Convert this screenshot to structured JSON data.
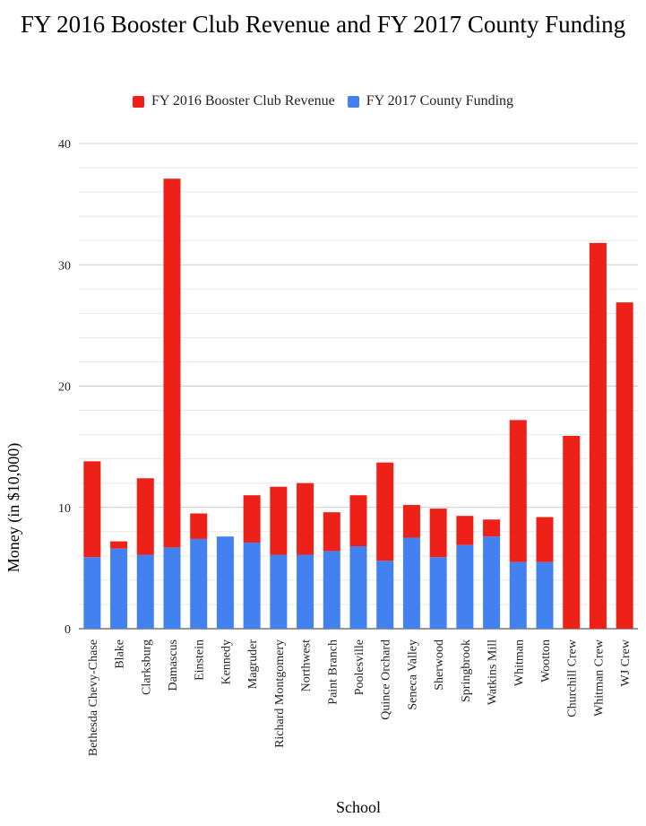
{
  "colors": {
    "booster": "#ee2119",
    "county": "#4380f0",
    "grid_major": "#cccccc",
    "grid_minor": "#e8e8e8",
    "axis": "#333333"
  },
  "chart_data": {
    "type": "bar",
    "stacked": true,
    "title": "FY 2016 Booster Club Revenue and FY 2017 County Funding",
    "xlabel": "School",
    "ylabel": "Money (in $10,000)",
    "ylim": [
      0,
      40
    ],
    "yticks": [
      0,
      10,
      20,
      30,
      40
    ],
    "grid": true,
    "legend_position": "top-center",
    "categories": [
      "Bethesda Chevy-Chase",
      "Blake",
      "Clarksburg",
      "Damascus",
      "Einstein",
      "Kennedy",
      "Magruder",
      "Richard Montgomery",
      "Northwest",
      "Paint Branch",
      "Poolesville",
      "Quince Orchard",
      "Seneca Valley",
      "Sherwood",
      "Springbrook",
      "Watkins Mill",
      "Whitman",
      "Wootton",
      "Churchill Crew",
      "Whitman Crew",
      "WJ Crew"
    ],
    "series": [
      {
        "name": "FY 2017 County Funding",
        "color": "#4380f0",
        "values": [
          5.9,
          6.6,
          6.1,
          6.7,
          7.4,
          7.6,
          7.1,
          6.1,
          6.1,
          6.4,
          6.8,
          5.6,
          7.5,
          5.9,
          6.9,
          7.6,
          5.5,
          5.5,
          0,
          0,
          0
        ]
      },
      {
        "name": "FY 2016 Booster Club Revenue",
        "color": "#ee2119",
        "values": [
          7.9,
          0.6,
          6.3,
          30.4,
          2.1,
          0.0,
          3.9,
          5.6,
          5.9,
          3.2,
          4.2,
          8.1,
          2.7,
          4.0,
          2.4,
          1.4,
          11.7,
          3.7,
          15.9,
          31.8,
          26.9
        ]
      }
    ],
    "legend": [
      "FY 2016 Booster Club Revenue",
      "FY 2017 County Funding"
    ]
  }
}
